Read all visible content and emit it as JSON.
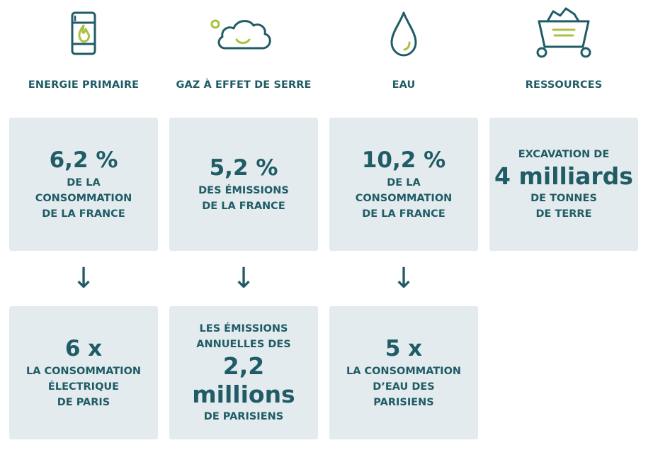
{
  "columns": [
    {
      "heading": "ENERGIE PRIMAIRE",
      "top": {
        "value": "6,2 %",
        "lines": [
          "DE LA",
          "CONSOMMATION",
          "DE LA FRANCE"
        ]
      },
      "arrow": "↓",
      "bottom": {
        "value": "6 x",
        "lines": [
          "LA CONSOMMATION",
          "ÉLECTRIQUE",
          "DE PARIS"
        ]
      }
    },
    {
      "heading": "GAZ À EFFET DE SERRE",
      "top": {
        "value": "5,2 %",
        "lines": [
          "DES ÉMISSIONS",
          "DE LA FRANCE"
        ]
      },
      "arrow": "↓",
      "bottom": {
        "pre": [
          "LES ÉMISSIONS",
          "ANNUELLES DES"
        ],
        "value": "2,2 millions",
        "lines": [
          "DE PARISIENS"
        ]
      }
    },
    {
      "heading": "EAU",
      "top": {
        "value": "10,2 %",
        "lines": [
          "DE LA",
          "CONSOMMATION",
          "DE LA FRANCE"
        ]
      },
      "arrow": "↓",
      "bottom": {
        "value": "5 x",
        "lines": [
          "LA CONSOMMATION",
          "D’EAU DES",
          "PARISIENS"
        ]
      }
    },
    {
      "heading": "RESSOURCES",
      "top": {
        "pre": [
          "EXCAVATION DE"
        ],
        "value": "4 milliards",
        "lines": [
          "DE TONNES",
          "DE TERRE"
        ]
      }
    }
  ],
  "colors": {
    "text": "#1f5c66",
    "box": "#e4ebee",
    "accent": "#a9c23f"
  },
  "icons": [
    "barrel-flame-icon",
    "cloud-icon",
    "water-drop-icon",
    "mine-cart-icon"
  ]
}
